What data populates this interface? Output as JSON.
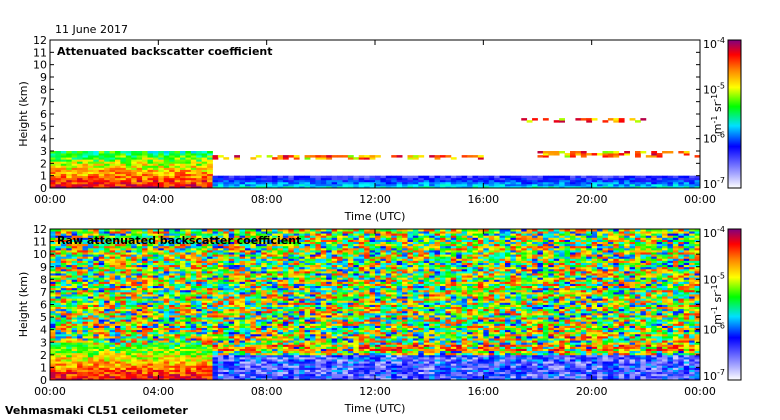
{
  "date_label": "11 June 2017",
  "footer": "Vehmasmaki CL51 ceilometer",
  "colors": {
    "background": "#ffffff",
    "colormap": [
      "#ffffff",
      "#8080ff",
      "#0000ff",
      "#00ffff",
      "#00ff00",
      "#ffff00",
      "#ff8000",
      "#ff0000",
      "#800080"
    ]
  },
  "chart_data": [
    {
      "type": "heatmap",
      "title": "Attenuated backscatter coefficient",
      "xlabel": "Time (UTC)",
      "ylabel": "Height (km)",
      "xticks": [
        "00:00",
        "04:00",
        "08:00",
        "12:00",
        "16:00",
        "20:00",
        "00:00"
      ],
      "yticks": [
        "0",
        "1",
        "2",
        "3",
        "4",
        "5",
        "6",
        "7",
        "8",
        "9",
        "10",
        "11",
        "12"
      ],
      "xlim": [
        0,
        24
      ],
      "ylim": [
        0,
        12
      ],
      "colorbar": {
        "ticks": [
          "10-7",
          "10-6",
          "10-5",
          "10-4"
        ],
        "label": "m-1 sr-1",
        "scale": "log",
        "range": [
          1e-07,
          0.0001
        ]
      },
      "features": [
        {
          "kind": "boundary-layer",
          "from": 0,
          "to": 6,
          "top_km": 3.0
        },
        {
          "kind": "surface-layer",
          "from": 6,
          "to": 24,
          "top_km": 1.0
        },
        {
          "kind": "cloud-layer",
          "from": 6,
          "to": 16,
          "height_km": 2.5
        },
        {
          "kind": "cloud-layer",
          "from": 18,
          "to": 24,
          "height_km": 2.8
        },
        {
          "kind": "cloud-layer",
          "from": 17.5,
          "to": 22,
          "height_km": 5.5
        }
      ]
    },
    {
      "type": "heatmap",
      "title": "Raw attenuated backscatter coefficient",
      "xlabel": "Time (UTC)",
      "ylabel": "Height (km)",
      "xticks": [
        "00:00",
        "04:00",
        "08:00",
        "12:00",
        "16:00",
        "20:00",
        "00:00"
      ],
      "yticks": [
        "0",
        "1",
        "2",
        "3",
        "4",
        "5",
        "6",
        "7",
        "8",
        "9",
        "10",
        "11",
        "12"
      ],
      "xlim": [
        0,
        24
      ],
      "ylim": [
        0,
        12
      ],
      "colorbar": {
        "ticks": [
          "10-7",
          "10-6",
          "10-5",
          "10-4"
        ],
        "label": "m-1 sr-1",
        "scale": "log",
        "range": [
          1e-07,
          0.0001
        ]
      },
      "features": [
        {
          "kind": "boundary-layer",
          "from": 0,
          "to": 6,
          "top_km": 3.0
        },
        {
          "kind": "noise-field",
          "from": 0,
          "to": 24,
          "bottom_km": 2.0,
          "top_km": 12
        },
        {
          "kind": "cloud-layer",
          "from": 6,
          "to": 24,
          "height_km": 2.6
        },
        {
          "kind": "cloud-layer",
          "from": 18.5,
          "to": 21,
          "height_km": 3.5
        }
      ]
    }
  ]
}
